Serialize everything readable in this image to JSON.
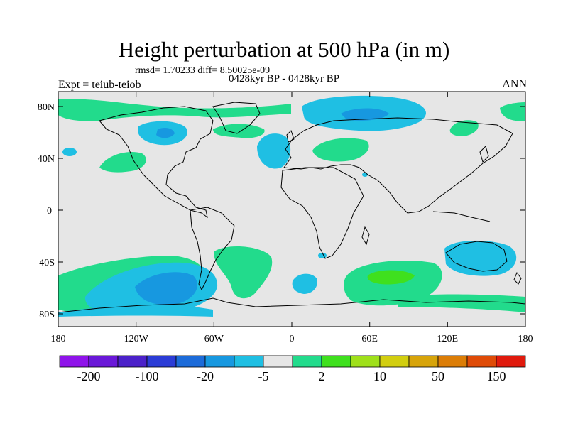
{
  "title": "Height perturbation at 500 hPa (in m)",
  "stats": "rmsd= 1.70233 diff= 8.50025e-09",
  "period": "0428kyr BP - 0428kyr BP",
  "experiment": "Expt = teiub-teiob",
  "season": "ANN",
  "y_axis_labels": [
    "80N",
    "40N",
    "0",
    "40S",
    "80S"
  ],
  "x_axis_labels": [
    "180",
    "120W",
    "60W",
    "0",
    "60E",
    "120E",
    "180"
  ],
  "colorbar": {
    "colors": [
      "#8f13ea",
      "#6a18d8",
      "#4b21c9",
      "#2b3cd6",
      "#1c6bd9",
      "#1798e0",
      "#1fbfe3",
      "#e6e6e6",
      "#22db8c",
      "#3fe01e",
      "#9fe01a",
      "#d2ce0f",
      "#d7a40a",
      "#dc7d06",
      "#df4b07",
      "#e01a0d"
    ],
    "labels": [
      "-200",
      "-100",
      "-20",
      "-5",
      "2",
      "10",
      "50",
      "150"
    ]
  },
  "legend_map": {
    "light_blue": "#1fbfe3",
    "mid_blue": "#1798e0",
    "green": "#22db8c",
    "bright_green": "#3fe01e",
    "background": "#e6e6e6"
  }
}
